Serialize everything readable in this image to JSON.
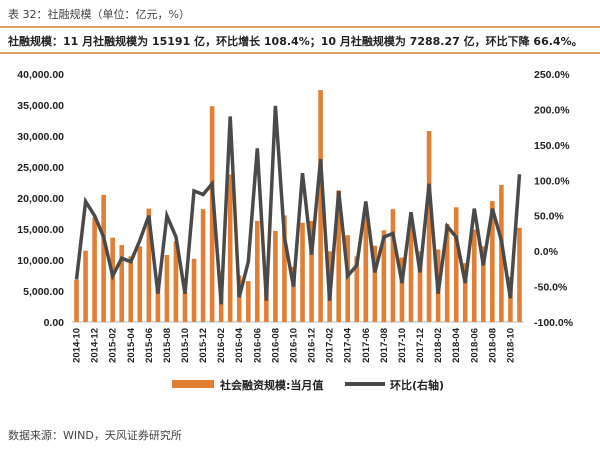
{
  "header": {
    "title": "表 32：社融规模（单位：亿元，%）",
    "subtitle": "社融规模：11 月社融规模为 15191 亿，环比增长 108.4%；10 月社融规模为 7288.27 亿，环比下降 66.4%。"
  },
  "source": "数据来源：WIND，天风证券研究所",
  "chart_data": {
    "type": "bar+line",
    "title": "",
    "x": [
      "2014-10",
      "2014-11",
      "2014-12",
      "2015-01",
      "2015-02",
      "2015-03",
      "2015-04",
      "2015-05",
      "2015-06",
      "2015-07",
      "2015-08",
      "2015-09",
      "2015-10",
      "2015-11",
      "2015-12",
      "2016-01",
      "2016-02",
      "2016-03",
      "2016-04",
      "2016-05",
      "2016-06",
      "2016-07",
      "2016-08",
      "2016-09",
      "2016-10",
      "2016-11",
      "2016-12",
      "2017-01",
      "2017-02",
      "2017-03",
      "2017-04",
      "2017-05",
      "2017-06",
      "2017-07",
      "2017-08",
      "2017-09",
      "2017-10",
      "2017-11",
      "2017-12",
      "2018-01",
      "2018-02",
      "2018-03",
      "2018-04",
      "2018-05",
      "2018-06",
      "2018-07",
      "2018-08",
      "2018-09",
      "2018-10",
      "2018-11"
    ],
    "x_tick_labels": [
      "2014-10",
      "2014-12",
      "2015-02",
      "2015-04",
      "2015-06",
      "2015-08",
      "2015-10",
      "2015-12",
      "2016-02",
      "2016-04",
      "2016-06",
      "2016-08",
      "2016-10",
      "2016-12",
      "2017-02",
      "2017-04",
      "2017-06",
      "2017-08",
      "2017-10",
      "2017-12",
      "2018-02",
      "2018-04",
      "2018-06",
      "2018-08",
      "2018-10"
    ],
    "series": [
      {
        "name": "社会融资规模:当月值",
        "type": "bar",
        "axis": "left",
        "color": "#e07f35",
        "values": [
          6800,
          11500,
          16900,
          20500,
          13600,
          12400,
          10600,
          12200,
          18300,
          7200,
          10800,
          13000,
          4800,
          10200,
          18200,
          34800,
          8200,
          23800,
          7500,
          6600,
          16300,
          4800,
          14700,
          17200,
          8900,
          16000,
          16300,
          37400,
          11400,
          21200,
          14000,
          10600,
          17800,
          12300,
          14800,
          18200,
          10400,
          16000,
          11400,
          30800,
          11700,
          15800,
          18500,
          9500,
          14900,
          12200,
          19500,
          22100,
          7288.27,
          15191
        ]
      },
      {
        "name": "环比(右轴)",
        "type": "line",
        "axis": "right",
        "color": "#4a4a4a",
        "values": [
          -40,
          70,
          50,
          20,
          -35,
          -10,
          -15,
          15,
          50,
          -60,
          50,
          20,
          -60,
          85,
          80,
          95,
          -75,
          190,
          -65,
          -15,
          145,
          -70,
          205,
          20,
          -50,
          110,
          -5,
          130,
          -70,
          85,
          -35,
          -20,
          70,
          -30,
          20,
          25,
          -45,
          55,
          -30,
          95,
          -60,
          35,
          20,
          -45,
          60,
          -20,
          60,
          15,
          -66.4,
          108.4
        ]
      }
    ],
    "left_axis": {
      "ylim": [
        0,
        40000
      ],
      "ticks": [
        "0.00",
        "5,000.00",
        "10,000.00",
        "15,000.00",
        "20,000.00",
        "25,000.00",
        "30,000.00",
        "35,000.00",
        "40,000.00"
      ]
    },
    "right_axis": {
      "ylim": [
        -100,
        250
      ],
      "ticks": [
        "-100.0%",
        "-50.0%",
        "0.0%",
        "50.0%",
        "100.0%",
        "150.0%",
        "200.0%",
        "250.0%"
      ]
    },
    "legend_position": "bottom"
  }
}
